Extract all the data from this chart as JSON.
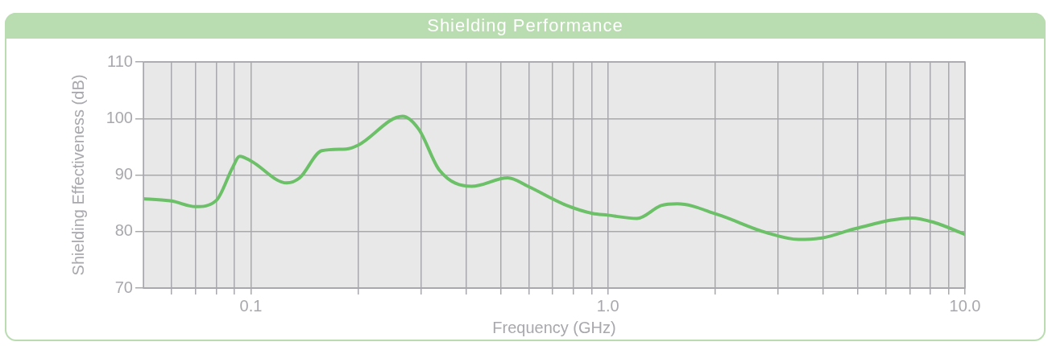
{
  "chart_data": {
    "type": "line",
    "title": "Shielding Performance",
    "xlabel": "Frequency (GHz)",
    "ylabel": "Shielding Effectiveness (dB)",
    "log": "x",
    "xlim": [
      0.05,
      10
    ],
    "xticks": [
      {
        "value": 0.06,
        "label": null
      },
      {
        "value": 0.07,
        "label": null
      },
      {
        "value": 0.08,
        "label": null
      },
      {
        "value": 0.09,
        "label": null
      },
      {
        "value": 0.1,
        "label": "0.1"
      },
      {
        "value": 0.2,
        "label": null
      },
      {
        "value": 0.3,
        "label": null
      },
      {
        "value": 0.4,
        "label": null
      },
      {
        "value": 0.5,
        "label": null
      },
      {
        "value": 0.6,
        "label": null
      },
      {
        "value": 0.7,
        "label": null
      },
      {
        "value": 0.8,
        "label": null
      },
      {
        "value": 0.9,
        "label": null
      },
      {
        "value": 1,
        "label": "1.0"
      },
      {
        "value": 2,
        "label": null
      },
      {
        "value": 3,
        "label": null
      },
      {
        "value": 4,
        "label": null
      },
      {
        "value": 5,
        "label": null
      },
      {
        "value": 6,
        "label": null
      },
      {
        "value": 7,
        "label": null
      },
      {
        "value": 8,
        "label": null
      },
      {
        "value": 9,
        "label": null
      },
      {
        "value": 10,
        "label": "10.0"
      }
    ],
    "ylim": [
      70,
      110
    ],
    "yticks": [
      70,
      80,
      90,
      100,
      110
    ],
    "grid": true,
    "legend": false,
    "marker": "none",
    "line_style": "solid",
    "x": [
      0.05,
      0.06,
      0.07,
      0.08,
      0.089,
      0.093,
      0.1,
      0.126,
      0.137,
      0.158,
      0.185,
      0.2,
      0.266,
      0.296,
      0.337,
      0.415,
      0.524,
      0.597,
      0.755,
      0.906,
      1.0,
      1.206,
      1.41,
      1.565,
      2.03,
      2.78,
      3.42,
      4.0,
      4.92,
      7.1,
      8.2,
      10
    ],
    "series": [
      {
        "color": "#6cc068",
        "values": [
          85.8,
          85.4,
          84.4,
          85.5,
          91.4,
          93.3,
          92.5,
          88.6,
          89.5,
          94.3,
          94.6,
          95.3,
          100.4,
          98,
          90.9,
          88.0,
          89.5,
          88,
          84.8,
          83.2,
          82.9,
          82.3,
          84.6,
          84.9,
          83.0,
          79.8,
          78.6,
          78.9,
          80.5,
          82.4,
          81.6,
          79.5
        ]
      }
    ]
  }
}
